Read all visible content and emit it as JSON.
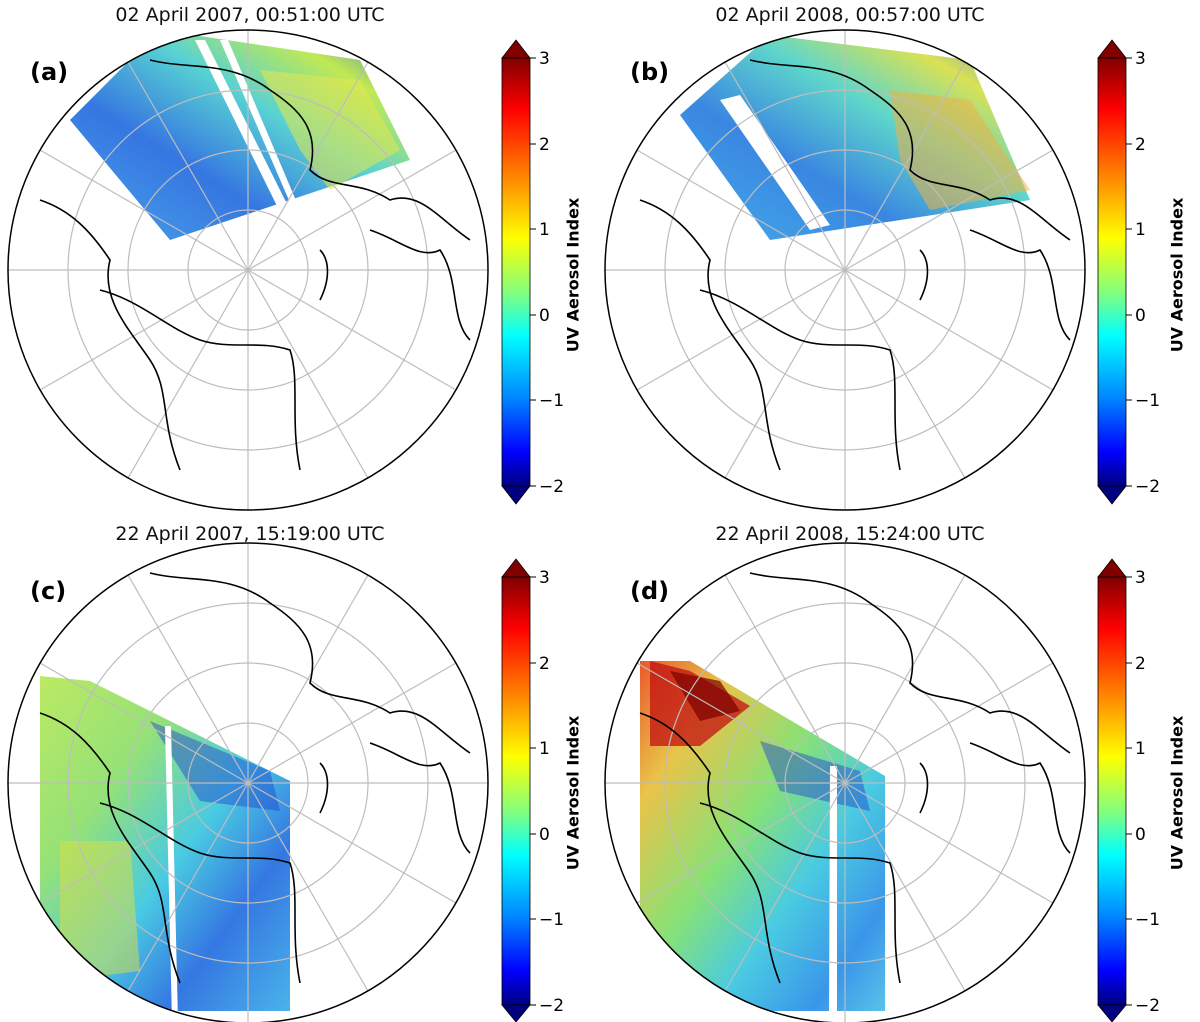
{
  "figure": {
    "colorbar": {
      "label": "UV Aerosol Index",
      "ticks": [
        "3",
        "2",
        "1",
        "0",
        "−1",
        "−2"
      ],
      "range": [
        -2,
        3
      ],
      "colormap": "jet",
      "extend": "both"
    },
    "panels": [
      {
        "letter": "(a)",
        "title": "02 April 2007, 00:51:00 UTC",
        "swath": "upper",
        "dominant_aerosol_index": "0 to 1",
        "enhanced_region": "Siberian coast (upper right)"
      },
      {
        "letter": "(b)",
        "title": "02 April 2008, 00:57:00 UTC",
        "swath": "upper",
        "dominant_aerosol_index": "0 to 1",
        "enhanced_region": "Siberian coast (upper right)"
      },
      {
        "letter": "(c)",
        "title": "22 April 2007, 15:19:00 UTC",
        "swath": "left",
        "dominant_aerosol_index": "0 to 1",
        "enhanced_region": "Alaska / Canada (left)"
      },
      {
        "letter": "(d)",
        "title": "22 April 2008, 15:24:00 UTC",
        "swath": "left",
        "dominant_aerosol_index": "0 to 3",
        "enhanced_region": "Alaska (upper left), values near 3"
      }
    ]
  }
}
